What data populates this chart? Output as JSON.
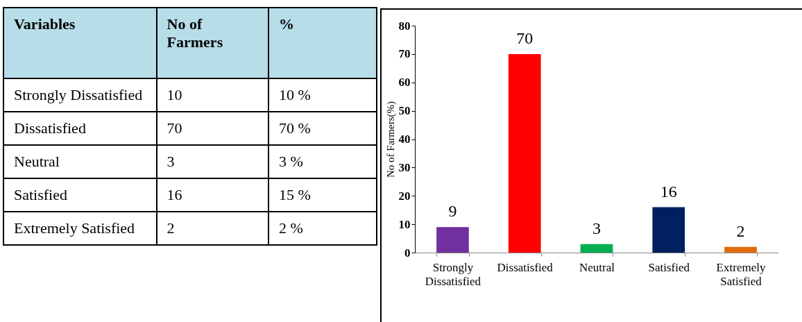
{
  "chart_data": [
    {
      "type": "other",
      "annotations": [
        "Variables",
        "No of Farmers",
        "%",
        "Strongly Dissatisfied",
        "10",
        "10 %",
        "Dissatisfied",
        "70",
        "70 %",
        "Neutral",
        "3",
        "3 %",
        "Satisfied",
        "16",
        "15 %",
        "Extremely Satisfied",
        "2",
        "2 %"
      ]
    },
    {
      "type": "bar",
      "categories": [
        "Strongly Dissatisfied",
        "Dissatisfied",
        "Neutral",
        "Satisfied",
        "Extremely Satisfied"
      ],
      "values": [
        9,
        70,
        3,
        16,
        2
      ],
      "colors": [
        "#7030a0",
        "#ff0000",
        "#00b050",
        "#002060",
        "#e36c0a"
      ],
      "ylabel": "No of Farmers(%)",
      "ylim": [
        0,
        80
      ],
      "yticks": [
        0,
        10,
        20,
        30,
        40,
        50,
        60,
        70,
        80
      ],
      "data_labels": true,
      "grid": false
    }
  ]
}
